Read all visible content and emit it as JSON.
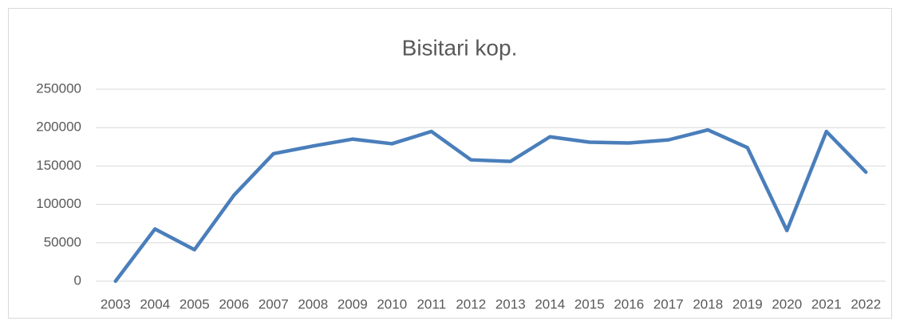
{
  "chart_data": {
    "type": "line",
    "title": "Bisitari kop.",
    "categories": [
      "2003",
      "2004",
      "2005",
      "2006",
      "2007",
      "2008",
      "2009",
      "2010",
      "2011",
      "2012",
      "2013",
      "2014",
      "2015",
      "2016",
      "2017",
      "2018",
      "2019",
      "2020",
      "2021",
      "2022"
    ],
    "values": [
      0,
      68000,
      41000,
      112000,
      166000,
      176000,
      185000,
      179000,
      195000,
      158000,
      156000,
      188000,
      181000,
      180000,
      184000,
      197000,
      174000,
      66000,
      195000,
      142000
    ],
    "color": "#4a7ebb",
    "ylim": [
      0,
      250000
    ],
    "yticks": [
      0,
      50000,
      100000,
      150000,
      200000,
      250000
    ],
    "grid": true
  }
}
